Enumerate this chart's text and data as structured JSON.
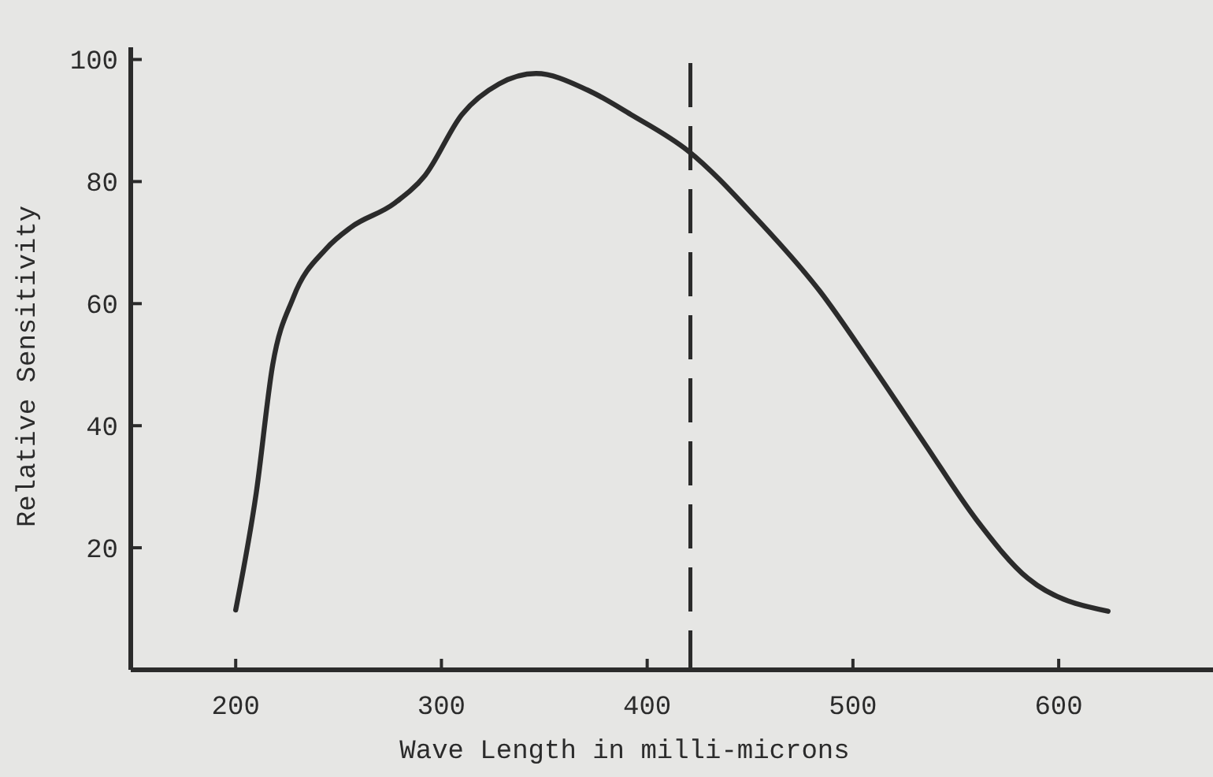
{
  "chart_data": {
    "type": "line",
    "xlabel": "Wave Length in milli-microns",
    "ylabel": "Relative Sensitivity",
    "xlim": [
      149,
      675
    ],
    "ylim": [
      0,
      102
    ],
    "xticks": [
      200,
      300,
      400,
      500,
      600
    ],
    "yticks": [
      {
        "value": 20,
        "label": "20"
      },
      {
        "value": 40,
        "label": "40"
      },
      {
        "value": 60,
        "label": "60"
      },
      {
        "value": 80,
        "label": "80"
      },
      {
        "value": 100,
        "label": "100"
      }
    ],
    "grid": false,
    "marker": "none",
    "line_style": "solid",
    "series": [
      {
        "color": "#2b2b2b",
        "x": [
          200,
          210,
          218,
          228,
          244,
          256,
          277,
          292,
          310,
          328,
          346,
          371,
          392,
          420,
          453,
          484,
          509,
          535,
          560,
          585,
          624
        ],
        "values": [
          9.8,
          29,
          50,
          61,
          69,
          72.5,
          76.4,
          81,
          91,
          96,
          97.7,
          95,
          91,
          85,
          74,
          62,
          50,
          37,
          24.6,
          15,
          9.6
        ]
      }
    ],
    "ref_lines": [
      {
        "axis": "x",
        "value": 421,
        "line_style": "dashed",
        "color": "#2b2b2b"
      }
    ]
  }
}
